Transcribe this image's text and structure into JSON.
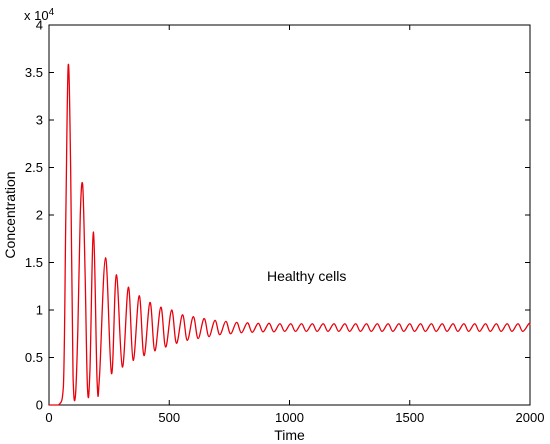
{
  "chart_data": {
    "type": "line",
    "title": "",
    "xlabel": "Time",
    "ylabel": "Concentration",
    "xlim": [
      0,
      2000
    ],
    "ylim": [
      0,
      40000
    ],
    "y_multiplier_label": "x 10",
    "y_multiplier_exponent": "4",
    "xticks": [
      0,
      500,
      1000,
      1500,
      2000
    ],
    "yticks": [
      0,
      5000,
      10000,
      15000,
      20000,
      25000,
      30000,
      35000,
      40000
    ],
    "ytick_labels": [
      "0",
      "0.5",
      "1",
      "1.5",
      "2",
      "2.5",
      "3",
      "3.5",
      "4"
    ],
    "grid": false,
    "legend": "none",
    "annotation": "Healthy cells",
    "series": [
      {
        "color": "#e8000b",
        "x": [
          0,
          40,
          60,
          70,
          80,
          90,
          100,
          110,
          120,
          130,
          140,
          150,
          160,
          170,
          185,
          200,
          210,
          235,
          260,
          280,
          305,
          330,
          350,
          375,
          395,
          420,
          440,
          465,
          485,
          510,
          530,
          555,
          575,
          600,
          620,
          645,
          665,
          690,
          710,
          735,
          755,
          780,
          800,
          825,
          845,
          870,
          890,
          915,
          935,
          960,
          980,
          1005,
          1025,
          1050,
          1070,
          1095,
          1115,
          1140,
          1160,
          1185,
          1205,
          1230,
          1250,
          1275,
          1295,
          1320,
          1340,
          1365,
          1385,
          1410,
          1430,
          1455,
          1475,
          1500,
          1520,
          1545,
          1565,
          1590,
          1610,
          1635,
          1655,
          1680,
          1700,
          1725,
          1745,
          1770,
          1790,
          1815,
          1835,
          1860,
          1880,
          1905,
          1925,
          1950,
          1970,
          1995,
          2000
        ],
        "y": [
          0,
          0,
          2000,
          20000,
          35800,
          25000,
          3000,
          1000,
          8000,
          20000,
          23200,
          14000,
          1800,
          3500,
          18200,
          2500,
          3000,
          15500,
          3300,
          13700,
          4000,
          12400,
          4700,
          11500,
          5200,
          10800,
          5700,
          10300,
          6100,
          10000,
          6500,
          9500,
          6800,
          9300,
          7000,
          9100,
          7200,
          8900,
          7400,
          8800,
          7500,
          8700,
          7600,
          8650,
          7650,
          8600,
          7700,
          8600,
          7700,
          8550,
          7750,
          8550,
          7750,
          8550,
          7750,
          8550,
          7750,
          8550,
          7750,
          8550,
          7750,
          8550,
          7750,
          8550,
          7750,
          8550,
          7750,
          8550,
          7750,
          8550,
          7750,
          8550,
          7750,
          8550,
          7750,
          8550,
          7750,
          8550,
          7750,
          8550,
          7750,
          8550,
          7750,
          8550,
          7750,
          8550,
          7750,
          8550,
          7750,
          8550,
          7750,
          8550,
          7750,
          8550,
          7750,
          8550,
          8400
        ]
      }
    ]
  }
}
